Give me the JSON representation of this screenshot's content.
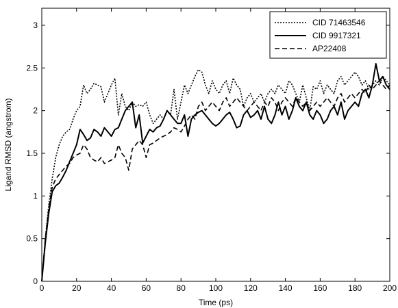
{
  "chart_data": {
    "type": "line",
    "title": "",
    "xlabel": "Time (ps)",
    "ylabel": "Ligand RMSD (angstrom)",
    "xlim": [
      0,
      200
    ],
    "ylim": [
      0,
      3.2
    ],
    "xticks": [
      0,
      20,
      40,
      60,
      80,
      100,
      120,
      140,
      160,
      180,
      200
    ],
    "yticks": [
      0,
      0.5,
      1,
      1.5,
      2,
      2.5,
      3
    ],
    "xtick_labels": [
      "0",
      "20",
      "40",
      "60",
      "80",
      "100",
      "120",
      "140",
      "160",
      "180",
      "200"
    ],
    "ytick_labels": [
      "0",
      "0.5",
      "1",
      "1.5",
      "2",
      "2.5",
      "3"
    ],
    "grid": false,
    "legend_position": "top-right",
    "series": [
      {
        "name": "CID 71463546",
        "style": "dotted",
        "color": "#000000",
        "x": [
          0,
          2,
          4,
          6,
          8,
          10,
          12,
          14,
          16,
          18,
          20,
          22,
          24,
          26,
          28,
          30,
          32,
          34,
          36,
          38,
          40,
          42,
          44,
          46,
          48,
          50,
          52,
          54,
          56,
          58,
          60,
          62,
          64,
          66,
          68,
          70,
          72,
          74,
          76,
          78,
          80,
          82,
          84,
          86,
          88,
          90,
          92,
          94,
          96,
          98,
          100,
          102,
          104,
          106,
          108,
          110,
          112,
          114,
          116,
          118,
          120,
          122,
          124,
          126,
          128,
          130,
          132,
          134,
          136,
          138,
          140,
          142,
          144,
          146,
          148,
          150,
          152,
          154,
          156,
          158,
          160,
          162,
          164,
          166,
          168,
          170,
          172,
          174,
          176,
          178,
          180,
          182,
          184,
          186,
          188,
          190,
          192,
          194,
          196,
          198,
          200
        ],
        "y": [
          0,
          0.5,
          0.9,
          1.2,
          1.45,
          1.6,
          1.7,
          1.75,
          1.78,
          1.9,
          2.0,
          2.05,
          2.3,
          2.2,
          2.25,
          2.32,
          2.3,
          2.28,
          2.1,
          2.2,
          2.3,
          2.38,
          1.95,
          2.2,
          2.05,
          2.0,
          2.1,
          2.05,
          2.07,
          2.05,
          2.1,
          1.95,
          1.85,
          1.9,
          1.95,
          1.9,
          2.0,
          1.95,
          2.25,
          1.9,
          2.1,
          2.3,
          2.2,
          2.3,
          2.4,
          2.48,
          2.45,
          2.3,
          2.2,
          2.35,
          2.25,
          2.2,
          2.3,
          2.35,
          2.2,
          2.38,
          2.3,
          2.25,
          2.05,
          2.15,
          2.2,
          2.1,
          2.15,
          2.2,
          2.1,
          2.2,
          2.25,
          2.2,
          2.3,
          2.25,
          2.2,
          2.35,
          2.3,
          2.2,
          2.1,
          2.3,
          2.15,
          2.0,
          2.28,
          2.25,
          2.35,
          2.2,
          2.3,
          2.25,
          2.2,
          2.35,
          2.4,
          2.3,
          2.35,
          2.4,
          2.45,
          2.4,
          2.3,
          2.35,
          2.25,
          2.3,
          2.35,
          2.3,
          2.4,
          2.35,
          2.3
        ]
      },
      {
        "name": "CID 9917321",
        "style": "solid",
        "color": "#000000",
        "x": [
          0,
          2,
          4,
          6,
          8,
          10,
          12,
          14,
          16,
          18,
          20,
          22,
          24,
          26,
          28,
          30,
          32,
          34,
          36,
          38,
          40,
          42,
          44,
          46,
          48,
          50,
          52,
          54,
          56,
          58,
          60,
          62,
          64,
          66,
          68,
          70,
          72,
          74,
          76,
          78,
          80,
          82,
          84,
          86,
          88,
          90,
          92,
          94,
          96,
          98,
          100,
          102,
          104,
          106,
          108,
          110,
          112,
          114,
          116,
          118,
          120,
          122,
          124,
          126,
          128,
          130,
          132,
          134,
          136,
          138,
          140,
          142,
          144,
          146,
          148,
          150,
          152,
          154,
          156,
          158,
          160,
          162,
          164,
          166,
          168,
          170,
          172,
          174,
          176,
          178,
          180,
          182,
          184,
          186,
          188,
          190,
          192,
          194,
          196,
          198,
          200
        ],
        "y": [
          0,
          0.45,
          0.8,
          1.05,
          1.12,
          1.15,
          1.22,
          1.3,
          1.4,
          1.5,
          1.6,
          1.78,
          1.72,
          1.65,
          1.68,
          1.78,
          1.75,
          1.7,
          1.8,
          1.75,
          1.7,
          1.78,
          1.8,
          1.9,
          2.0,
          2.05,
          2.1,
          1.8,
          1.95,
          1.62,
          1.7,
          1.78,
          1.75,
          1.8,
          1.82,
          1.9,
          2.0,
          1.95,
          1.9,
          1.85,
          1.85,
          1.95,
          1.7,
          1.9,
          1.95,
          1.98,
          2.0,
          1.95,
          1.9,
          1.85,
          1.82,
          1.85,
          1.9,
          1.95,
          1.98,
          1.9,
          1.8,
          1.82,
          1.95,
          2.0,
          1.92,
          1.95,
          2.0,
          1.9,
          2.05,
          1.9,
          1.85,
          1.95,
          2.1,
          1.95,
          2.05,
          1.9,
          2.0,
          2.15,
          2.05,
          2.0,
          2.1,
          1.95,
          1.9,
          2.0,
          1.95,
          1.85,
          1.9,
          2.0,
          2.05,
          1.95,
          2.1,
          1.9,
          2.0,
          2.05,
          2.1,
          2.05,
          2.2,
          2.25,
          2.15,
          2.3,
          2.55,
          2.35,
          2.4,
          2.3,
          2.25
        ]
      },
      {
        "name": "AP22408",
        "style": "dashed",
        "color": "#000000",
        "x": [
          0,
          2,
          4,
          6,
          8,
          10,
          12,
          14,
          16,
          18,
          20,
          22,
          24,
          26,
          28,
          30,
          32,
          34,
          36,
          38,
          40,
          42,
          44,
          46,
          48,
          50,
          52,
          54,
          56,
          58,
          60,
          62,
          64,
          66,
          68,
          70,
          72,
          74,
          76,
          78,
          80,
          82,
          84,
          86,
          88,
          90,
          92,
          94,
          96,
          98,
          100,
          102,
          104,
          106,
          108,
          110,
          112,
          114,
          116,
          118,
          120,
          122,
          124,
          126,
          128,
          130,
          132,
          134,
          136,
          138,
          140,
          142,
          144,
          146,
          148,
          150,
          152,
          154,
          156,
          158,
          160,
          162,
          164,
          166,
          168,
          170,
          172,
          174,
          176,
          178,
          180,
          182,
          184,
          186,
          188,
          190,
          192,
          194,
          196,
          198,
          200
        ],
        "y": [
          0,
          0.5,
          0.85,
          1.1,
          1.2,
          1.25,
          1.3,
          1.35,
          1.38,
          1.45,
          1.48,
          1.5,
          1.6,
          1.55,
          1.45,
          1.42,
          1.4,
          1.45,
          1.38,
          1.4,
          1.42,
          1.45,
          1.6,
          1.5,
          1.45,
          1.3,
          1.55,
          1.6,
          1.65,
          1.6,
          1.45,
          1.6,
          1.62,
          1.65,
          1.68,
          1.7,
          1.72,
          1.75,
          1.8,
          1.78,
          1.75,
          1.82,
          1.9,
          1.95,
          1.9,
          2.05,
          2.1,
          2.0,
          2.05,
          2.1,
          2.05,
          2.0,
          2.1,
          2.15,
          2.05,
          2.1,
          2.15,
          2.1,
          2.05,
          2.0,
          2.05,
          2.1,
          2.05,
          2.0,
          2.1,
          2.05,
          2.15,
          2.1,
          2.0,
          2.1,
          2.15,
          2.1,
          2.05,
          2.15,
          2.1,
          2.05,
          2.1,
          2.0,
          2.05,
          2.1,
          2.05,
          2.1,
          2.15,
          2.1,
          2.05,
          2.15,
          2.2,
          2.1,
          2.15,
          2.2,
          2.15,
          2.2,
          2.25,
          2.2,
          2.3,
          2.25,
          2.3,
          2.35,
          2.3,
          2.25,
          2.3
        ]
      }
    ]
  }
}
